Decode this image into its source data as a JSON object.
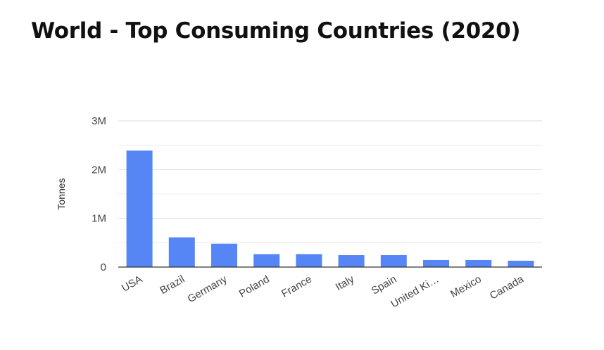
{
  "chart_data": {
    "type": "bar",
    "title": "World - Top Consuming Countries (2020)",
    "xlabel": "",
    "ylabel": "Tonnes",
    "categories": [
      "USA",
      "Brazil",
      "Germany",
      "Poland",
      "France",
      "Italy",
      "Spain",
      "United Ki…",
      "Mexico",
      "Canada"
    ],
    "values": [
      2390000,
      610000,
      480000,
      265000,
      265000,
      245000,
      245000,
      145000,
      145000,
      130000
    ],
    "ylim": [
      0,
      3000000
    ],
    "yticks": [
      {
        "value": 0,
        "label": "0"
      },
      {
        "value": 1000000,
        "label": "1M"
      },
      {
        "value": 2000000,
        "label": "2M"
      },
      {
        "value": 3000000,
        "label": "3M"
      }
    ],
    "minor_gridlines": [
      500000,
      1500000,
      2500000
    ],
    "grid": true,
    "legend": "none",
    "bar_color": "#5686f5",
    "gridline_color": "#dddddd",
    "axis_color": "#333333"
  }
}
